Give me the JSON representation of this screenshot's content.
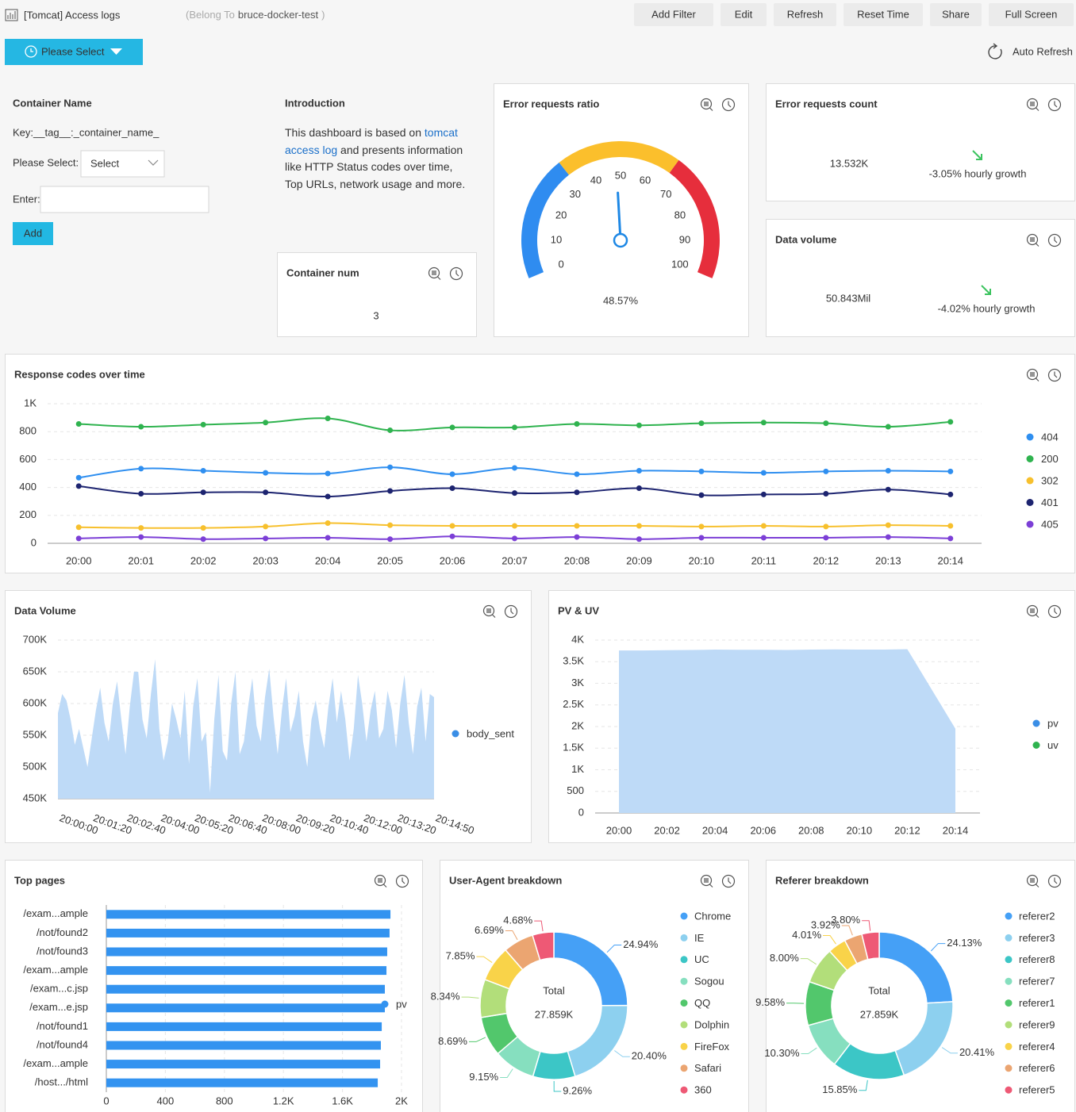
{
  "header": {
    "title": "[Tomcat] Access logs",
    "belong_to": "(Belong To",
    "project": "bruce-docker-test",
    "belong_close": ")",
    "buttons": [
      "Add Filter",
      "Edit",
      "Refresh",
      "Reset Time",
      "Share",
      "Full Screen"
    ],
    "time_picker": "Please Select",
    "auto_refresh": "Auto Refresh"
  },
  "container_filter": {
    "title": "Container Name",
    "key": "Key:__tag__:_container_name_",
    "select_label": "Please Select:",
    "select_placeholder": "Select",
    "enter_label": "Enter:",
    "add_button": "Add"
  },
  "introduction": {
    "title": "Introduction",
    "text_before": "This dashboard is based on",
    "link": "tomcat access log",
    "text_after": "and presents information like HTTP Status codes over time, Top URLs, network usage and more."
  },
  "container_num": {
    "title": "Container num",
    "value": 3
  },
  "error_ratio": {
    "title": "Error requests ratio",
    "type": "gauge",
    "value": 48.57,
    "value_label": "48.57%",
    "min": 0,
    "max": 100,
    "ticks": [
      0,
      10,
      20,
      30,
      40,
      50,
      60,
      70,
      80,
      90,
      100
    ],
    "bands": [
      {
        "from": 0,
        "to": 33,
        "color": "#2f8cf0"
      },
      {
        "from": 33,
        "to": 66,
        "color": "#fbbf2c"
      },
      {
        "from": 66,
        "to": 100,
        "color": "#e62e3c"
      }
    ],
    "needle_color": "#1e88e5"
  },
  "error_count": {
    "title": "Error requests count",
    "value": 13532,
    "value_label": "13.532K",
    "growth_label": "-3.05% hourly growth"
  },
  "data_volume": {
    "title": "Data volume",
    "value": 50843000,
    "value_label": "50.843Mil",
    "growth_label": "-4.02% hourly growth"
  },
  "response_codes": {
    "title": "Response codes over time",
    "type": "line",
    "categories": [
      "20:00",
      "20:01",
      "20:02",
      "20:03",
      "20:04",
      "20:05",
      "20:06",
      "20:07",
      "20:08",
      "20:09",
      "20:10",
      "20:11",
      "20:12",
      "20:13",
      "20:14"
    ],
    "series": [
      {
        "name": "404",
        "color": "#2f8ff0",
        "values": [
          470,
          535,
          520,
          505,
          500,
          545,
          495,
          540,
          495,
          520,
          515,
          505,
          515,
          520,
          515
        ]
      },
      {
        "name": "200",
        "color": "#2fb34f",
        "values": [
          855,
          835,
          850,
          865,
          895,
          810,
          830,
          830,
          855,
          845,
          860,
          865,
          860,
          835,
          870
        ]
      },
      {
        "name": "302",
        "color": "#f7c02d",
        "values": [
          115,
          110,
          110,
          120,
          145,
          130,
          125,
          125,
          125,
          125,
          120,
          125,
          120,
          130,
          125
        ]
      },
      {
        "name": "401",
        "color": "#1d2470",
        "values": [
          410,
          355,
          365,
          365,
          335,
          375,
          395,
          360,
          365,
          395,
          345,
          350,
          355,
          385,
          350
        ]
      },
      {
        "name": "405",
        "color": "#7c3fd6",
        "values": [
          35,
          45,
          30,
          35,
          40,
          30,
          50,
          35,
          45,
          30,
          40,
          40,
          40,
          45,
          35
        ]
      }
    ],
    "ylim": [
      0,
      1000
    ],
    "yticks": [
      0,
      200,
      400,
      600,
      800,
      {
        "value": 1000,
        "label": "1K"
      }
    ],
    "grid": true
  },
  "volume_chart": {
    "title": "Data Volume",
    "type": "area",
    "categories": [
      "20:00:00",
      null,
      null,
      null,
      null,
      null,
      null,
      null,
      "20:01:20",
      null,
      null,
      null,
      null,
      null,
      null,
      null,
      "20:02:40",
      null,
      null,
      null,
      null,
      null,
      null,
      null,
      "20:04:00",
      null,
      null,
      null,
      null,
      null,
      null,
      null,
      "20:05:20",
      null,
      null,
      null,
      null,
      null,
      null,
      null,
      "20:06:40",
      null,
      null,
      null,
      null,
      null,
      null,
      null,
      "20:08:00",
      null,
      null,
      null,
      null,
      null,
      null,
      null,
      "20:09:20",
      null,
      null,
      null,
      null,
      null,
      null,
      null,
      "20:10:40",
      null,
      null,
      null,
      null,
      null,
      null,
      null,
      "20:12:00",
      null,
      null,
      null,
      null,
      null,
      null,
      null,
      "20:13:20",
      null,
      null,
      null,
      null,
      null,
      null,
      null,
      null,
      "20:14:50"
    ],
    "series": [
      {
        "name": "body_sent",
        "color": "#3a8ee6",
        "values": [
          585000,
          615000,
          605000,
          575000,
          535000,
          560000,
          530000,
          500000,
          545000,
          590000,
          625000,
          570000,
          540000,
          600000,
          635000,
          575000,
          520000,
          595000,
          650000,
          650000,
          575000,
          545000,
          615000,
          670000,
          560000,
          510000,
          540000,
          600000,
          575000,
          545000,
          620000,
          505000,
          595000,
          640000,
          540000,
          555000,
          460000,
          575000,
          645000,
          525000,
          510000,
          600000,
          650000,
          520000,
          540000,
          595000,
          640000,
          565000,
          540000,
          610000,
          655000,
          580000,
          520000,
          590000,
          640000,
          555000,
          580000,
          620000,
          540000,
          500000,
          575000,
          605000,
          560000,
          530000,
          595000,
          640000,
          570000,
          620000,
          575000,
          510000,
          560000,
          645000,
          600000,
          540000,
          590000,
          620000,
          545000,
          560000,
          620000,
          590000,
          530000,
          600000,
          645000,
          570000,
          520000,
          595000,
          625000,
          540000,
          615000,
          610000
        ]
      }
    ],
    "ylim": [
      450000,
      700000
    ],
    "yticks": [
      {
        "value": 450000,
        "label": "450K"
      },
      {
        "value": 500000,
        "label": "500K"
      },
      {
        "value": 550000,
        "label": "550K"
      },
      {
        "value": 600000,
        "label": "600K"
      },
      {
        "value": 650000,
        "label": "650K"
      },
      {
        "value": 700000,
        "label": "700K"
      }
    ],
    "grid": true
  },
  "pv_uv": {
    "title": "PV & UV",
    "type": "area",
    "categories": [
      "20:00",
      null,
      "20:02",
      null,
      "20:04",
      null,
      "20:06",
      null,
      "20:08",
      null,
      "20:10",
      null,
      "20:12",
      null,
      "20:14"
    ],
    "series": [
      {
        "name": "pv",
        "color": "#3a8ee6",
        "values": [
          3760,
          3760,
          3765,
          3770,
          3780,
          3775,
          3775,
          3770,
          3780,
          3785,
          3780,
          3780,
          3790,
          2870,
          1950
        ]
      },
      {
        "name": "uv",
        "color": "#2fb34f",
        "values": [
          3600,
          3605,
          3610,
          3615,
          3620,
          3615,
          3615,
          3610,
          3620,
          3625,
          3620,
          3620,
          3630,
          2750,
          1870
        ]
      }
    ],
    "ylim": [
      0,
      4000
    ],
    "yticks": [
      0,
      500,
      {
        "value": 1000,
        "label": "1K"
      },
      {
        "value": 1500,
        "label": "1.5K"
      },
      {
        "value": 2000,
        "label": "2K"
      },
      {
        "value": 2500,
        "label": "2.5K"
      },
      {
        "value": 3000,
        "label": "3K"
      },
      {
        "value": 3500,
        "label": "3.5K"
      },
      {
        "value": 4000,
        "label": "4K"
      }
    ],
    "grid": true
  },
  "top_pages": {
    "title": "Top pages",
    "type": "hbar",
    "categories": [
      "/exam...ample",
      "/not/found2",
      "/not/found3",
      "/exam...ample",
      "/exam...c.jsp",
      "/exam...e.jsp",
      "/not/found1",
      "/not/found4",
      "/exam...ample",
      "/host.../html"
    ],
    "series": [
      {
        "name": "pv",
        "color": "#3393f0",
        "values": [
          1925,
          1919,
          1903,
          1898,
          1887,
          1887,
          1866,
          1860,
          1855,
          1839
        ]
      }
    ],
    "xlim": [
      0,
      2000
    ],
    "xticks": [
      0,
      400,
      800,
      {
        "value": 1200,
        "label": "1.2K"
      },
      {
        "value": 1600,
        "label": "1.6K"
      },
      {
        "value": 2000,
        "label": "2K"
      }
    ],
    "grid": true
  },
  "user_agent": {
    "title": "User-Agent breakdown",
    "type": "donut",
    "center_label": "Total",
    "total": 27859,
    "total_label": "27.859K",
    "categories": [
      "Chrome",
      "IE",
      "UC",
      "Sogou",
      "QQ",
      "Dolphin",
      "FireFox",
      "Safari",
      "360"
    ],
    "values": [
      24.94,
      20.4,
      9.26,
      9.15,
      8.69,
      8.34,
      7.85,
      6.69,
      4.68
    ],
    "value_labels": [
      "24.94%",
      "20.40%",
      "9.26%",
      "9.15%",
      "8.69%",
      "8.34%",
      "7.85%",
      "6.69%",
      "4.68%"
    ],
    "colors": [
      "#45a0f6",
      "#8dd0ef",
      "#3cc6c6",
      "#86dfbf",
      "#52c76c",
      "#b2de7a",
      "#f9d349",
      "#eba571",
      "#ee5975"
    ]
  },
  "referer": {
    "title": "Referer breakdown",
    "type": "donut",
    "center_label": "Total",
    "total": 27859,
    "total_label": "27.859K",
    "categories": [
      "referer2",
      "referer3",
      "referer8",
      "referer7",
      "referer1",
      "referer9",
      "referer4",
      "referer6",
      "referer5"
    ],
    "values": [
      24.13,
      20.41,
      15.85,
      10.3,
      9.58,
      8.0,
      4.01,
      3.92,
      3.8
    ],
    "value_labels": [
      "24.13%",
      "20.41%",
      "15.85%",
      "10.30%",
      "9.58%",
      "8.00%",
      "4.01%",
      "3.92%",
      "3.80%"
    ],
    "colors": [
      "#45a0f6",
      "#8dd0ef",
      "#3cc6c6",
      "#86dfbf",
      "#52c76c",
      "#b2de7a",
      "#f9d349",
      "#eba571",
      "#ee5975"
    ]
  }
}
